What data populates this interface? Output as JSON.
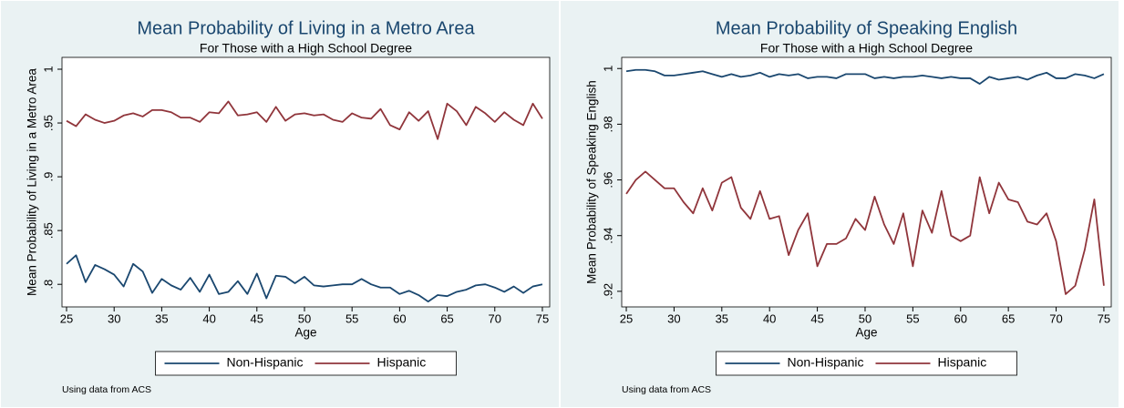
{
  "chart_data": [
    {
      "type": "line",
      "title": "Mean Probability of Living in a Metro Area",
      "subtitle": "For Those with a High School Degree",
      "xlabel": "Age",
      "ylabel": "Mean Probability of Living in a Metro Area",
      "note": "Using data from ACS",
      "x": [
        25,
        26,
        27,
        28,
        29,
        30,
        31,
        32,
        33,
        34,
        35,
        36,
        37,
        38,
        39,
        40,
        41,
        42,
        43,
        44,
        45,
        46,
        47,
        48,
        49,
        50,
        51,
        52,
        53,
        54,
        55,
        56,
        57,
        58,
        59,
        60,
        61,
        62,
        63,
        64,
        65,
        66,
        67,
        68,
        69,
        70,
        71,
        72,
        73,
        74,
        75
      ],
      "series": [
        {
          "name": "Non-Hispanic",
          "color": "#1a476f",
          "values": [
            0.819,
            0.827,
            0.802,
            0.818,
            0.814,
            0.809,
            0.798,
            0.819,
            0.812,
            0.792,
            0.805,
            0.799,
            0.795,
            0.806,
            0.793,
            0.809,
            0.791,
            0.793,
            0.803,
            0.791,
            0.81,
            0.787,
            0.808,
            0.807,
            0.801,
            0.807,
            0.799,
            0.798,
            0.799,
            0.8,
            0.8,
            0.805,
            0.8,
            0.797,
            0.797,
            0.791,
            0.794,
            0.79,
            0.784,
            0.79,
            0.789,
            0.793,
            0.795,
            0.799,
            0.8,
            0.797,
            0.793,
            0.798,
            0.792,
            0.798,
            0.8
          ]
        },
        {
          "name": "Hispanic",
          "color": "#90353b",
          "values": [
            0.952,
            0.947,
            0.958,
            0.953,
            0.95,
            0.952,
            0.957,
            0.959,
            0.956,
            0.962,
            0.962,
            0.96,
            0.955,
            0.955,
            0.951,
            0.96,
            0.959,
            0.97,
            0.957,
            0.958,
            0.96,
            0.951,
            0.965,
            0.952,
            0.958,
            0.959,
            0.957,
            0.958,
            0.953,
            0.951,
            0.959,
            0.955,
            0.954,
            0.963,
            0.948,
            0.944,
            0.96,
            0.952,
            0.961,
            0.935,
            0.968,
            0.961,
            0.948,
            0.965,
            0.959,
            0.951,
            0.96,
            0.953,
            0.948,
            0.968,
            0.954
          ]
        }
      ],
      "xlim": [
        24.52,
        75.77
      ],
      "ylim": [
        0.779,
        1.011
      ],
      "xticks": [
        25,
        30,
        35,
        40,
        45,
        50,
        55,
        60,
        65,
        70,
        75
      ],
      "yticks": [
        {
          "value": 0.8,
          "label": ".8"
        },
        {
          "value": 0.85,
          "label": ".85"
        },
        {
          "value": 0.9,
          "label": ".9"
        },
        {
          "value": 0.95,
          "label": ".95"
        },
        1
      ]
    },
    {
      "type": "line",
      "title": "Mean Probability of Speaking English",
      "subtitle": "For Those with a High School Degree",
      "xlabel": "Age",
      "ylabel": "Mean Probability of Speaking English",
      "note": "Using data from ACS",
      "x": [
        25,
        26,
        27,
        28,
        29,
        30,
        31,
        32,
        33,
        34,
        35,
        36,
        37,
        38,
        39,
        40,
        41,
        42,
        43,
        44,
        45,
        46,
        47,
        48,
        49,
        50,
        51,
        52,
        53,
        54,
        55,
        56,
        57,
        58,
        59,
        60,
        61,
        62,
        63,
        64,
        65,
        66,
        67,
        68,
        69,
        70,
        71,
        72,
        73,
        74,
        75
      ],
      "series": [
        {
          "name": "Non-Hispanic",
          "color": "#1a476f",
          "values": [
            0.999,
            0.9995,
            0.9995,
            0.999,
            0.9975,
            0.9975,
            0.998,
            0.9985,
            0.999,
            0.998,
            0.997,
            0.998,
            0.997,
            0.9975,
            0.9985,
            0.997,
            0.998,
            0.9975,
            0.998,
            0.9965,
            0.997,
            0.997,
            0.9965,
            0.998,
            0.998,
            0.998,
            0.9965,
            0.997,
            0.9965,
            0.997,
            0.997,
            0.9975,
            0.997,
            0.9965,
            0.997,
            0.9965,
            0.9965,
            0.9945,
            0.997,
            0.996,
            0.9965,
            0.997,
            0.996,
            0.9975,
            0.9985,
            0.9965,
            0.9965,
            0.998,
            0.9975,
            0.9965,
            0.998
          ]
        },
        {
          "name": "Hispanic",
          "color": "#90353b",
          "values": [
            0.955,
            0.96,
            0.963,
            0.96,
            0.957,
            0.957,
            0.952,
            0.948,
            0.957,
            0.949,
            0.959,
            0.961,
            0.95,
            0.946,
            0.956,
            0.946,
            0.947,
            0.933,
            0.942,
            0.948,
            0.929,
            0.937,
            0.937,
            0.939,
            0.946,
            0.942,
            0.954,
            0.944,
            0.937,
            0.948,
            0.929,
            0.949,
            0.941,
            0.956,
            0.94,
            0.938,
            0.94,
            0.961,
            0.948,
            0.959,
            0.953,
            0.952,
            0.945,
            0.944,
            0.948,
            0.938,
            0.919,
            0.922,
            0.935,
            0.953,
            0.922
          ]
        }
      ],
      "xlim": [
        24.52,
        75.77
      ],
      "ylim": [
        0.9144,
        1.004
      ],
      "xticks": [
        25,
        30,
        35,
        40,
        45,
        50,
        55,
        60,
        65,
        70,
        75
      ],
      "yticks": [
        {
          "value": 0.92,
          "label": ".92"
        },
        {
          "value": 0.94,
          "label": ".94"
        },
        {
          "value": 0.96,
          "label": ".96"
        },
        {
          "value": 0.98,
          "label": ".98"
        },
        1
      ]
    }
  ]
}
